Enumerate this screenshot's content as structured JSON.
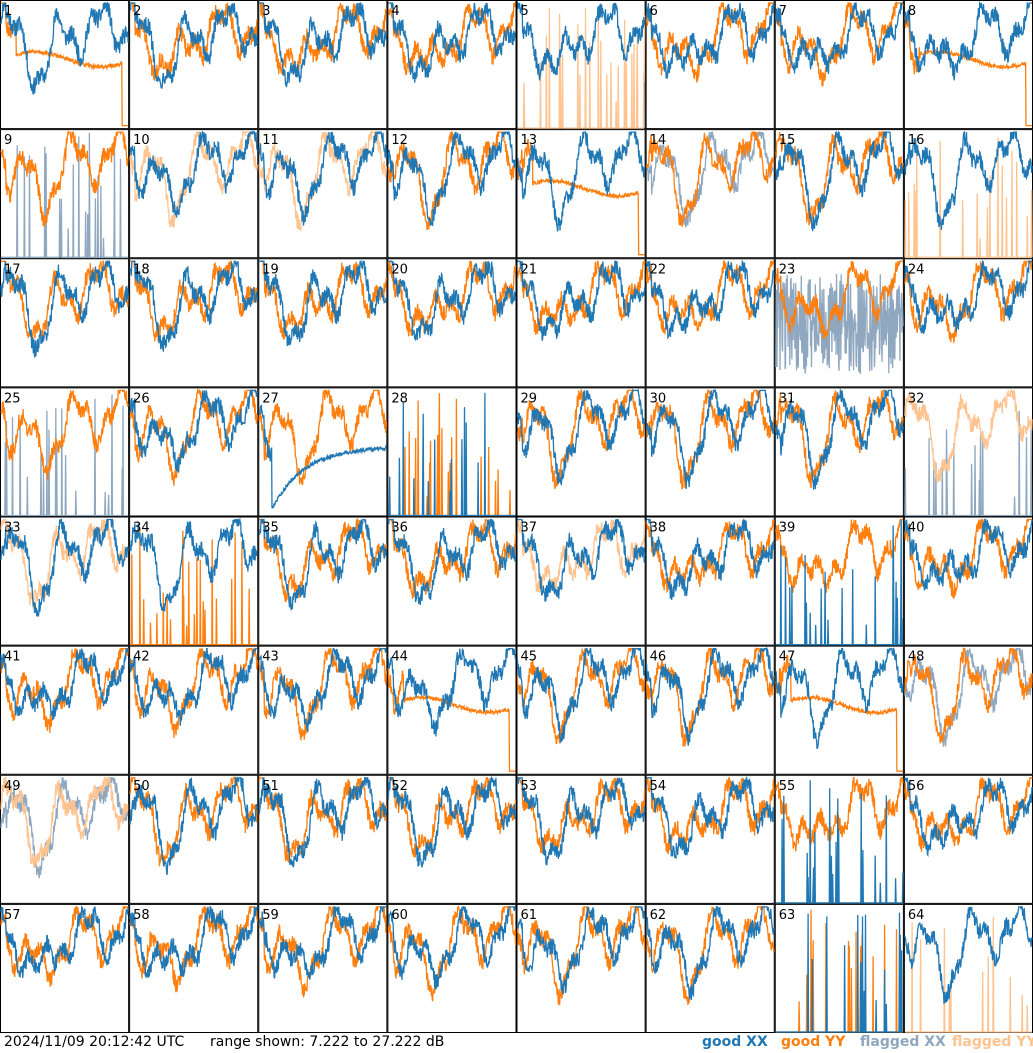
{
  "footer": {
    "timestamp": "2024/11/09 20:12:42 UTC",
    "range_text": "range shown: 7.222 to 27.222 dB",
    "legend": [
      {
        "label": "good XX",
        "color": "#1f77b4"
      },
      {
        "label": "good YY",
        "color": "#ff7f0e"
      },
      {
        "label": "flagged XX",
        "color": "#8fa8c0"
      },
      {
        "label": "flagged YY",
        "color": "#ffc38f"
      }
    ]
  },
  "chart_data": {
    "type": "line",
    "layout": "8x8 small multiples",
    "ylim": [
      7.222,
      27.222
    ],
    "yunit": "dB",
    "panels": [
      {
        "label": "1",
        "xx": "good",
        "yy": "good",
        "xx_mode": "normal",
        "yy_mode": "flat"
      },
      {
        "label": "2",
        "xx": "good",
        "yy": "good",
        "xx_mode": "normal",
        "yy_mode": "normal"
      },
      {
        "label": "3",
        "xx": "good",
        "yy": "good",
        "xx_mode": "normal",
        "yy_mode": "normal"
      },
      {
        "label": "4",
        "xx": "good",
        "yy": "good",
        "xx_mode": "normal",
        "yy_mode": "normal"
      },
      {
        "label": "5",
        "xx": "good",
        "yy": "flagged",
        "xx_mode": "normal",
        "yy_mode": "spikes"
      },
      {
        "label": "6",
        "xx": "good",
        "yy": "good",
        "xx_mode": "normal",
        "yy_mode": "normal"
      },
      {
        "label": "7",
        "xx": "good",
        "yy": "good",
        "xx_mode": "normal",
        "yy_mode": "normal"
      },
      {
        "label": "8",
        "xx": "good",
        "yy": "good",
        "xx_mode": "normal",
        "yy_mode": "flat"
      },
      {
        "label": "9",
        "xx": "flagged",
        "yy": "good",
        "xx_mode": "spikes",
        "yy_mode": "normal"
      },
      {
        "label": "10",
        "xx": "good",
        "yy": "flagged",
        "xx_mode": "normal",
        "yy_mode": "normal"
      },
      {
        "label": "11",
        "xx": "good",
        "yy": "flagged",
        "xx_mode": "normal",
        "yy_mode": "normal"
      },
      {
        "label": "12",
        "xx": "good",
        "yy": "good",
        "xx_mode": "normal",
        "yy_mode": "normal"
      },
      {
        "label": "13",
        "xx": "good",
        "yy": "good",
        "xx_mode": "normal",
        "yy_mode": "flat"
      },
      {
        "label": "14",
        "xx": "flagged",
        "yy": "good",
        "xx_mode": "normal",
        "yy_mode": "normal"
      },
      {
        "label": "15",
        "xx": "good",
        "yy": "good",
        "xx_mode": "normal",
        "yy_mode": "normal"
      },
      {
        "label": "16",
        "xx": "good",
        "yy": "flagged",
        "xx_mode": "normal",
        "yy_mode": "spikes"
      },
      {
        "label": "17",
        "xx": "good",
        "yy": "good",
        "xx_mode": "normal",
        "yy_mode": "normal"
      },
      {
        "label": "18",
        "xx": "good",
        "yy": "good",
        "xx_mode": "normal",
        "yy_mode": "normal"
      },
      {
        "label": "19",
        "xx": "good",
        "yy": "good",
        "xx_mode": "normal",
        "yy_mode": "normal"
      },
      {
        "label": "20",
        "xx": "good",
        "yy": "good",
        "xx_mode": "normal",
        "yy_mode": "normal"
      },
      {
        "label": "21",
        "xx": "good",
        "yy": "good",
        "xx_mode": "normal",
        "yy_mode": "normal"
      },
      {
        "label": "22",
        "xx": "good",
        "yy": "good",
        "xx_mode": "normal",
        "yy_mode": "normal"
      },
      {
        "label": "23",
        "xx": "flagged",
        "yy": "good",
        "xx_mode": "noisy",
        "yy_mode": "normal"
      },
      {
        "label": "24",
        "xx": "good",
        "yy": "good",
        "xx_mode": "normal",
        "yy_mode": "normal"
      },
      {
        "label": "25",
        "xx": "flagged",
        "yy": "good",
        "xx_mode": "spikes",
        "yy_mode": "normal"
      },
      {
        "label": "26",
        "xx": "good",
        "yy": "good",
        "xx_mode": "normal",
        "yy_mode": "normal"
      },
      {
        "label": "27",
        "xx": "good",
        "yy": "good",
        "xx_mode": "decay",
        "yy_mode": "normal"
      },
      {
        "label": "28",
        "xx": "good",
        "yy": "good",
        "xx_mode": "spikes",
        "yy_mode": "spikes"
      },
      {
        "label": "29",
        "xx": "good",
        "yy": "good",
        "xx_mode": "normal",
        "yy_mode": "normal"
      },
      {
        "label": "30",
        "xx": "good",
        "yy": "good",
        "xx_mode": "normal",
        "yy_mode": "normal"
      },
      {
        "label": "31",
        "xx": "good",
        "yy": "good",
        "xx_mode": "normal",
        "yy_mode": "normal"
      },
      {
        "label": "32",
        "xx": "flagged",
        "yy": "flagged",
        "xx_mode": "spikes",
        "yy_mode": "normal"
      },
      {
        "label": "33",
        "xx": "good",
        "yy": "flagged",
        "xx_mode": "normal",
        "yy_mode": "normal"
      },
      {
        "label": "34",
        "xx": "good",
        "yy": "good",
        "xx_mode": "normal",
        "yy_mode": "spikes"
      },
      {
        "label": "35",
        "xx": "good",
        "yy": "good",
        "xx_mode": "normal",
        "yy_mode": "normal"
      },
      {
        "label": "36",
        "xx": "good",
        "yy": "good",
        "xx_mode": "normal",
        "yy_mode": "normal"
      },
      {
        "label": "37",
        "xx": "good",
        "yy": "flagged",
        "xx_mode": "normal",
        "yy_mode": "normal"
      },
      {
        "label": "38",
        "xx": "good",
        "yy": "good",
        "xx_mode": "normal",
        "yy_mode": "normal"
      },
      {
        "label": "39",
        "xx": "good",
        "yy": "good",
        "xx_mode": "spikes",
        "yy_mode": "normal"
      },
      {
        "label": "40",
        "xx": "good",
        "yy": "good",
        "xx_mode": "normal",
        "yy_mode": "normal"
      },
      {
        "label": "41",
        "xx": "good",
        "yy": "good",
        "xx_mode": "normal",
        "yy_mode": "normal"
      },
      {
        "label": "42",
        "xx": "good",
        "yy": "good",
        "xx_mode": "normal",
        "yy_mode": "normal"
      },
      {
        "label": "43",
        "xx": "good",
        "yy": "good",
        "xx_mode": "normal",
        "yy_mode": "normal"
      },
      {
        "label": "44",
        "xx": "good",
        "yy": "good",
        "xx_mode": "normal",
        "yy_mode": "flat"
      },
      {
        "label": "45",
        "xx": "good",
        "yy": "good",
        "xx_mode": "normal",
        "yy_mode": "normal"
      },
      {
        "label": "46",
        "xx": "good",
        "yy": "good",
        "xx_mode": "normal",
        "yy_mode": "normal"
      },
      {
        "label": "47",
        "xx": "good",
        "yy": "good",
        "xx_mode": "normal",
        "yy_mode": "flat"
      },
      {
        "label": "48",
        "xx": "flagged",
        "yy": "good",
        "xx_mode": "normal",
        "yy_mode": "normal"
      },
      {
        "label": "49",
        "xx": "flagged",
        "yy": "flagged",
        "xx_mode": "normal",
        "yy_mode": "normal"
      },
      {
        "label": "50",
        "xx": "good",
        "yy": "good",
        "xx_mode": "normal",
        "yy_mode": "normal"
      },
      {
        "label": "51",
        "xx": "good",
        "yy": "good",
        "xx_mode": "normal",
        "yy_mode": "normal"
      },
      {
        "label": "52",
        "xx": "good",
        "yy": "good",
        "xx_mode": "normal",
        "yy_mode": "normal"
      },
      {
        "label": "53",
        "xx": "good",
        "yy": "good",
        "xx_mode": "normal",
        "yy_mode": "normal"
      },
      {
        "label": "54",
        "xx": "good",
        "yy": "good",
        "xx_mode": "normal",
        "yy_mode": "normal"
      },
      {
        "label": "55",
        "xx": "good",
        "yy": "good",
        "xx_mode": "spikes",
        "yy_mode": "normal"
      },
      {
        "label": "56",
        "xx": "good",
        "yy": "good",
        "xx_mode": "normal",
        "yy_mode": "normal"
      },
      {
        "label": "57",
        "xx": "good",
        "yy": "good",
        "xx_mode": "normal",
        "yy_mode": "normal"
      },
      {
        "label": "58",
        "xx": "good",
        "yy": "good",
        "xx_mode": "normal",
        "yy_mode": "normal"
      },
      {
        "label": "59",
        "xx": "good",
        "yy": "good",
        "xx_mode": "normal",
        "yy_mode": "normal"
      },
      {
        "label": "60",
        "xx": "good",
        "yy": "good",
        "xx_mode": "normal",
        "yy_mode": "normal"
      },
      {
        "label": "61",
        "xx": "good",
        "yy": "good",
        "xx_mode": "normal",
        "yy_mode": "normal"
      },
      {
        "label": "62",
        "xx": "good",
        "yy": "good",
        "xx_mode": "normal",
        "yy_mode": "normal"
      },
      {
        "label": "63",
        "xx": "good",
        "yy": "good",
        "xx_mode": "spikes",
        "yy_mode": "spikes"
      },
      {
        "label": "64",
        "xx": "good",
        "yy": "flagged",
        "xx_mode": "normal",
        "yy_mode": "spikes"
      }
    ]
  }
}
